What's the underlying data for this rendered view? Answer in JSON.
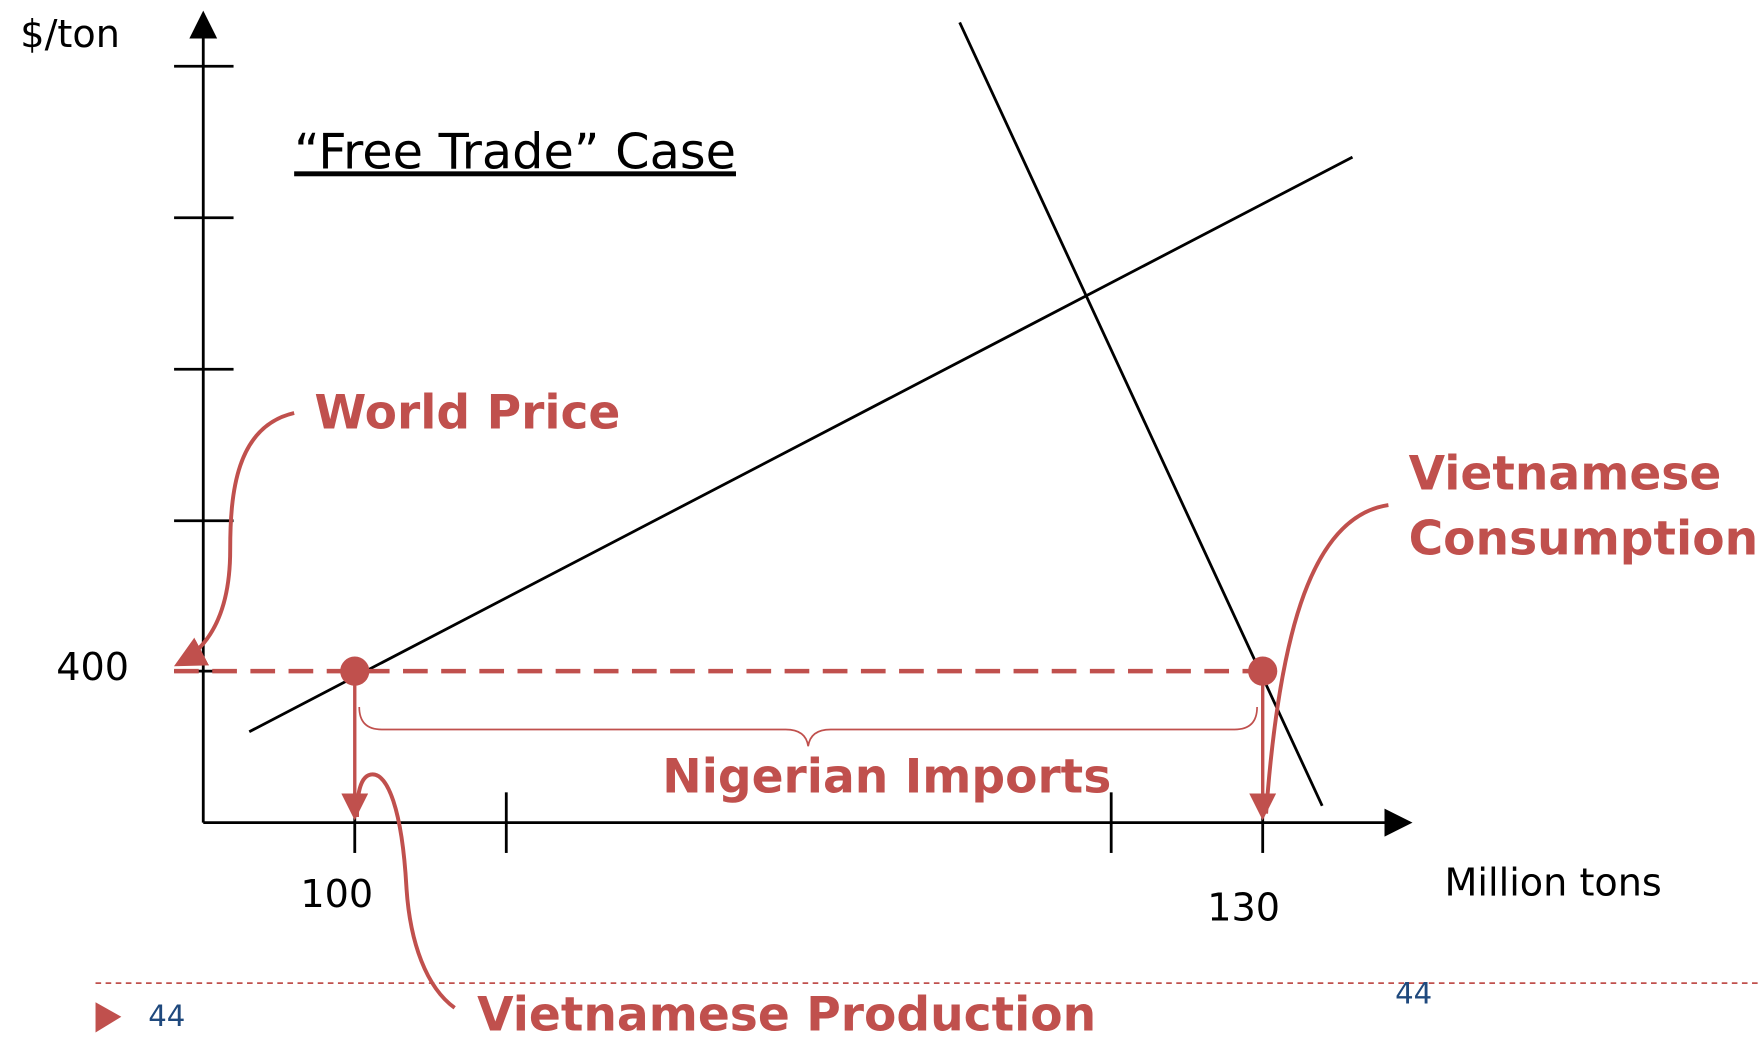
{
  "y_axis_label": "$/ton",
  "x_axis_label": "Million tons",
  "title": "“Free Trade” Case",
  "price_label": "400",
  "quantity_labels": [
    "100",
    "130"
  ],
  "annotations": {
    "world_price": "World Price",
    "consumption": [
      "Vietnamese",
      "Consumption"
    ],
    "imports": "Nigerian Imports",
    "production": "Vietnamese Production"
  },
  "footer": {
    "slide_number": "44",
    "page_number": "44"
  }
}
